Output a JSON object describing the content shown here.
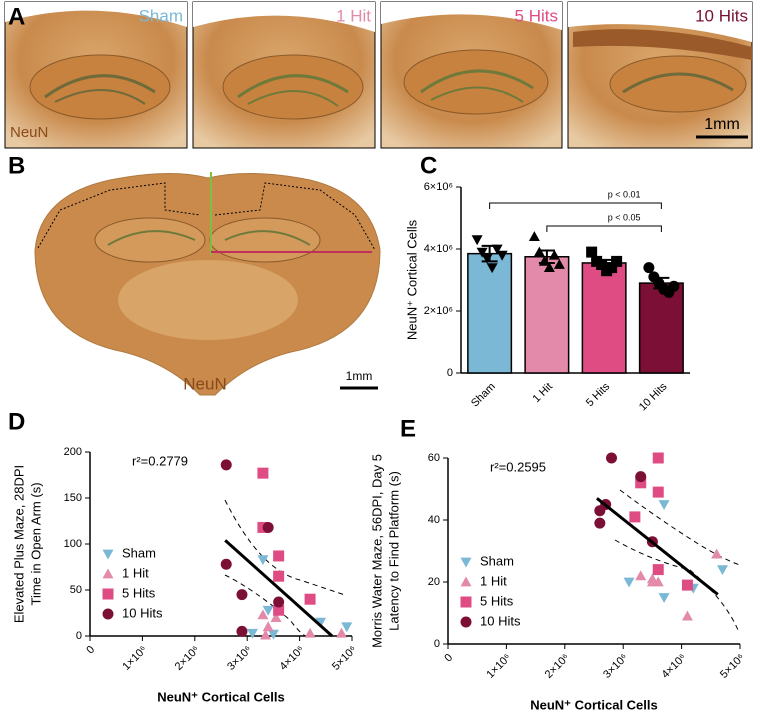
{
  "panel_a": {
    "letter": "A",
    "labels": [
      "Sham",
      "1 Hit",
      "5 Hits",
      "10 Hits"
    ],
    "label_colors": [
      "#7ab8d6",
      "#e38aaa",
      "#df4c84",
      "#7b0f35"
    ],
    "stain": "NeuN",
    "scale": "1mm"
  },
  "panel_b": {
    "letter": "B",
    "stain": "NeuN",
    "scale": "1mm"
  },
  "chart_data": [
    {
      "type": "bar",
      "letter": "C",
      "ylabel": "NeuN⁺ Cortical Cells",
      "categories": [
        "Sham",
        "1 Hit",
        "5 Hits",
        "10 Hits"
      ],
      "values": [
        3850000,
        3750000,
        3550000,
        2900000
      ],
      "errors": [
        250000,
        200000,
        100000,
        170000
      ],
      "colors": [
        "#7ab8d6",
        "#e38aaa",
        "#df4c84",
        "#7b0f35"
      ],
      "markers": [
        "triangle-down",
        "triangle-up",
        "square",
        "circle"
      ],
      "points": [
        [
          4300000,
          3900000,
          3700000,
          3400000,
          4000000,
          3800000
        ],
        [
          4400000,
          3900000,
          3600000,
          3400000,
          3800000,
          3500000
        ],
        [
          3900000,
          3600000,
          3500000,
          3300000,
          3400000,
          3600000
        ],
        [
          3400000,
          3100000,
          2900000,
          2700000,
          2600000,
          2800000
        ]
      ],
      "ylim": [
        0,
        6000000
      ],
      "yticks": [
        0,
        {
          "value": 2000000,
          "label": "2×10⁶"
        },
        {
          "value": 4000000,
          "label": "4×10⁶"
        },
        {
          "value": 6000000,
          "label": "6×10⁶"
        }
      ],
      "comparisons": [
        {
          "label": "p < 0.01",
          "groups": [
            "Sham",
            "10 Hits"
          ]
        },
        {
          "label": "p < 0.05",
          "groups": [
            "1 Hit",
            "10 Hits"
          ]
        }
      ]
    },
    {
      "type": "scatter",
      "letter": "D",
      "ylabel": [
        "Elevated Plus Maze, 28DPI",
        "Time in Open Arm (s)"
      ],
      "xlabel": "NeuN⁺ Cortical Cells",
      "annotation": "r²=0.2779",
      "legend": "bottom-left",
      "xlim": [
        0,
        5000000
      ],
      "ylim": [
        0,
        200
      ],
      "xticks": [
        0,
        {
          "value": 1000000,
          "label": "1×10⁶"
        },
        {
          "value": 2000000,
          "label": "2×10⁶"
        },
        {
          "value": 3000000,
          "label": "3×10⁶"
        },
        {
          "value": 4000000,
          "label": "4×10⁶"
        },
        {
          "value": 5000000,
          "label": "5×10⁶"
        }
      ],
      "yticks": [
        0,
        50,
        100,
        150,
        200
      ],
      "series": [
        {
          "name": "Sham",
          "color": "#7ab8d6",
          "marker": "triangle-down",
          "x": [
            3300000,
            3400000,
            3100000,
            4400000,
            4900000,
            3500000
          ],
          "values": [
            83,
            28,
            3,
            15,
            10,
            2
          ]
        },
        {
          "name": "1 Hit",
          "color": "#e38aaa",
          "marker": "triangle-up",
          "x": [
            3300000,
            3400000,
            3350000,
            3550000,
            4800000,
            4200000
          ],
          "values": [
            23,
            10,
            1,
            20,
            3,
            3
          ]
        },
        {
          "name": "5 Hits",
          "color": "#df4c84",
          "marker": "square",
          "x": [
            3300000,
            3300000,
            3600000,
            3600000,
            4200000,
            3600000
          ],
          "values": [
            177,
            118,
            87,
            65,
            40,
            28
          ]
        },
        {
          "name": "10 Hits",
          "color": "#7b0f35",
          "marker": "circle",
          "x": [
            2600000,
            3400000,
            2600000,
            2900000,
            3600000,
            2900000
          ],
          "values": [
            186,
            118,
            78,
            45,
            37,
            5
          ]
        }
      ],
      "fit": {
        "x": [
          2580000,
          4620000
        ],
        "y": [
          104,
          0
        ]
      }
    },
    {
      "type": "scatter",
      "letter": "E",
      "ylabel": [
        "Morris Water Maze, 56DPI, Day 5",
        "Latency to Find Platform (s)"
      ],
      "xlabel": "NeuN⁺ Cortical Cells",
      "annotation": "r²=0.2595",
      "legend": "bottom-left",
      "xlim": [
        0,
        5000000
      ],
      "ylim": [
        0,
        60
      ],
      "xticks": [
        0,
        {
          "value": 1000000,
          "label": "1×10⁶"
        },
        {
          "value": 2000000,
          "label": "2×10⁶"
        },
        {
          "value": 3000000,
          "label": "3×10⁶"
        },
        {
          "value": 4000000,
          "label": "4×10⁶"
        },
        {
          "value": 5000000,
          "label": "5×10⁶"
        }
      ],
      "yticks": [
        0,
        20,
        40,
        60
      ],
      "series": [
        {
          "name": "Sham",
          "color": "#7ab8d6",
          "marker": "triangle-down",
          "x": [
            4700000,
            3700000,
            3600000,
            3100000,
            4200000,
            3700000
          ],
          "values": [
            24,
            45,
            24,
            20,
            18,
            15
          ]
        },
        {
          "name": "1 Hit",
          "color": "#e38aaa",
          "marker": "triangle-up",
          "x": [
            4600000,
            3500000,
            3300000,
            3500000,
            4100000,
            3600000
          ],
          "values": [
            29,
            21,
            22,
            20,
            9,
            20
          ]
        },
        {
          "name": "5 Hits",
          "color": "#df4c84",
          "marker": "square",
          "x": [
            3600000,
            3300000,
            3600000,
            3200000,
            3600000,
            4100000
          ],
          "values": [
            60,
            52,
            49,
            41,
            24,
            19
          ]
        },
        {
          "name": "10 Hits",
          "color": "#7b0f35",
          "marker": "circle",
          "x": [
            2800000,
            3300000,
            2600000,
            2700000,
            2600000,
            3500000
          ],
          "values": [
            60,
            54,
            43,
            45,
            39,
            33
          ]
        }
      ],
      "fit": {
        "x": [
          2550000,
          4620000
        ],
        "y": [
          47,
          16
        ]
      }
    }
  ]
}
